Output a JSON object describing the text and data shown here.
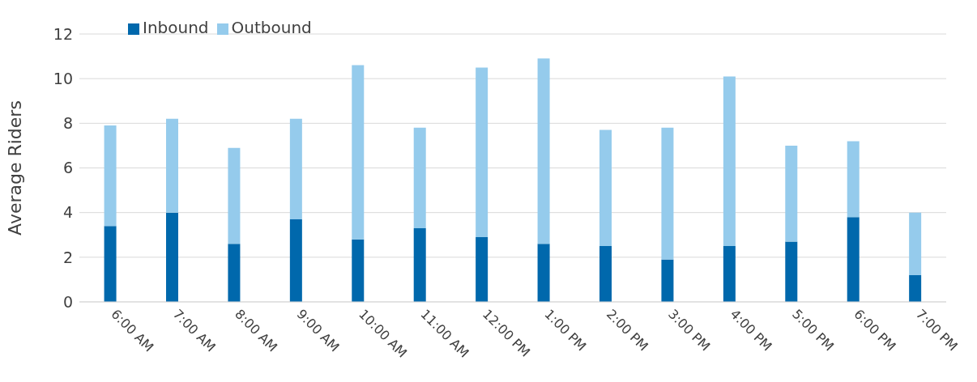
{
  "chart_data": {
    "type": "bar",
    "stacked": true,
    "ylabel": "Average Riders",
    "categories": [
      "6:00 AM",
      "7:00 AM",
      "8:00 AM",
      "9:00 AM",
      "10:00 AM",
      "11:00 AM",
      "12:00 PM",
      "1:00 PM",
      "2:00 PM",
      "3:00 PM",
      "4:00 PM",
      "5:00 PM",
      "6:00 PM",
      "7:00 PM"
    ],
    "series": [
      {
        "name": "Inbound",
        "color": "#0068ac",
        "values": [
          3.4,
          4.0,
          2.6,
          3.7,
          2.8,
          3.3,
          2.9,
          2.6,
          2.5,
          1.9,
          2.5,
          2.7,
          3.8,
          1.2
        ]
      },
      {
        "name": "Outbound",
        "color": "#95cbec",
        "values": [
          4.5,
          4.2,
          4.3,
          4.5,
          7.8,
          4.5,
          7.6,
          8.3,
          5.2,
          5.9,
          7.6,
          4.3,
          3.4,
          2.8
        ]
      }
    ],
    "ylim": [
      0,
      12
    ],
    "yticks": [
      0,
      2,
      4,
      6,
      8,
      10,
      12
    ],
    "grid": "y",
    "legend": "top left"
  }
}
